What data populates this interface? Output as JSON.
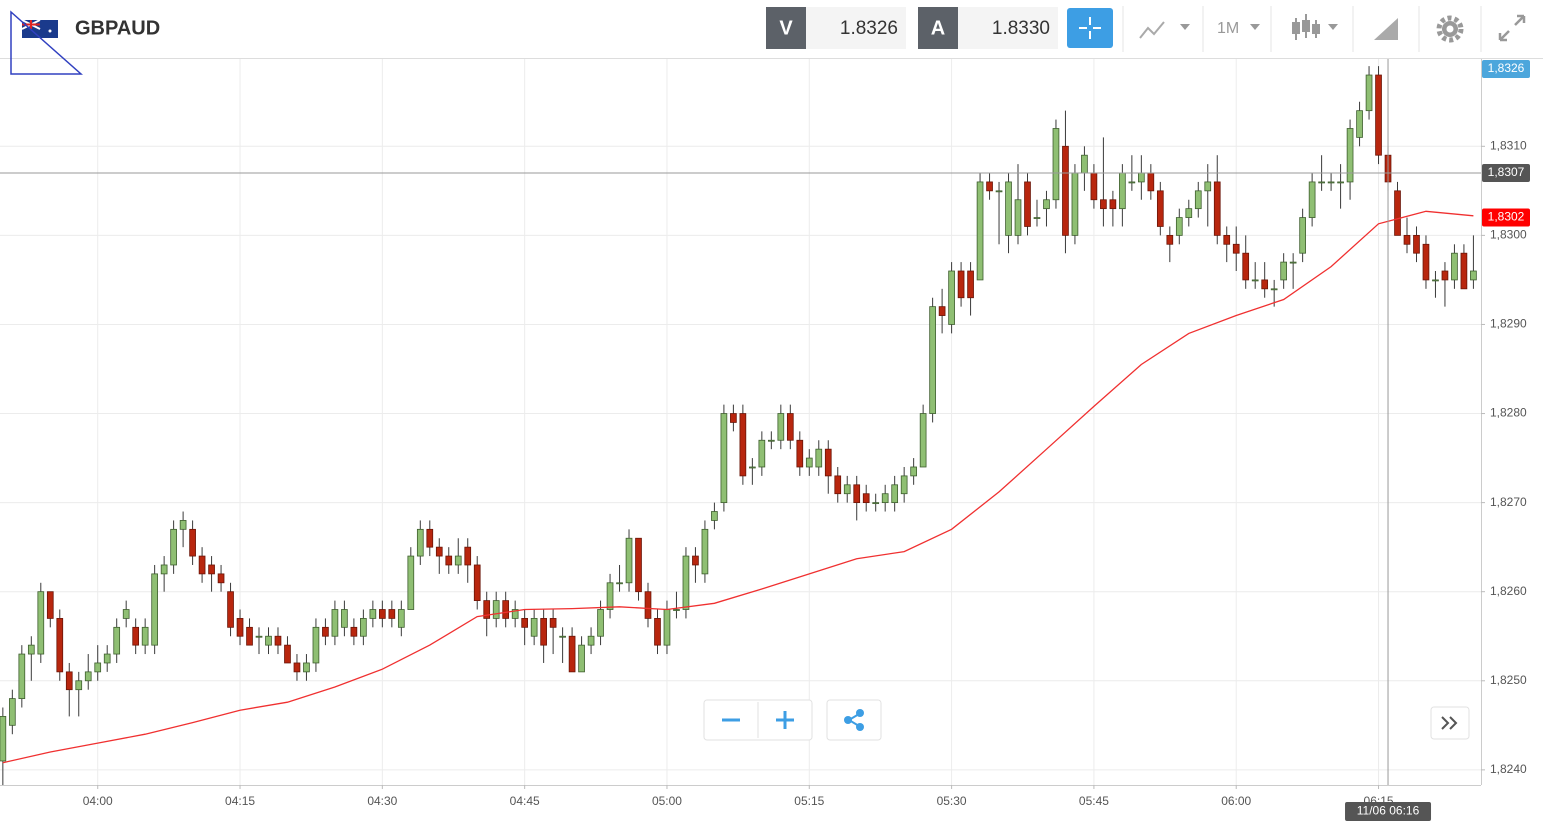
{
  "toolbar": {
    "symbol": "GBPAUD",
    "bid_label": "V",
    "bid": "1.8326",
    "ask_label": "A",
    "ask": "1.8330",
    "timeframe": "1M"
  },
  "chart_data": {
    "type": "candlestick",
    "title": "GBPAUD",
    "up_color": "#8fbf73",
    "down_color": "#b8260e",
    "candles": [
      [
        1.8241,
        1.8247,
        1.8238,
        1.8246
      ],
      [
        1.8245,
        1.8249,
        1.8244,
        1.8248
      ],
      [
        1.8248,
        1.8254,
        1.8247,
        1.8253
      ],
      [
        1.8253,
        1.8255,
        1.825,
        1.8254
      ],
      [
        1.8253,
        1.8261,
        1.8252,
        1.826
      ],
      [
        1.826,
        1.826,
        1.8256,
        1.8257
      ],
      [
        1.8257,
        1.8258,
        1.825,
        1.8251
      ],
      [
        1.8251,
        1.8252,
        1.8246,
        1.8249
      ],
      [
        1.8249,
        1.8251,
        1.8246,
        1.825
      ],
      [
        1.825,
        1.8253,
        1.8249,
        1.8251
      ],
      [
        1.8251,
        1.8254,
        1.825,
        1.8252
      ],
      [
        1.8252,
        1.8254,
        1.8251,
        1.8253
      ],
      [
        1.8253,
        1.8257,
        1.8252,
        1.8256
      ],
      [
        1.8257,
        1.8259,
        1.8256,
        1.8258
      ],
      [
        1.8256,
        1.8257,
        1.8253,
        1.8254
      ],
      [
        1.8254,
        1.8257,
        1.8253,
        1.8256
      ],
      [
        1.8254,
        1.8263,
        1.8253,
        1.8262
      ],
      [
        1.8262,
        1.8264,
        1.826,
        1.8263
      ],
      [
        1.8263,
        1.8268,
        1.8262,
        1.8267
      ],
      [
        1.8267,
        1.8269,
        1.8265,
        1.8268
      ],
      [
        1.8267,
        1.8268,
        1.8263,
        1.8264
      ],
      [
        1.8264,
        1.8265,
        1.8261,
        1.8262
      ],
      [
        1.8263,
        1.8264,
        1.826,
        1.8262
      ],
      [
        1.8262,
        1.8263,
        1.826,
        1.8261
      ],
      [
        1.826,
        1.8261,
        1.8255,
        1.8256
      ],
      [
        1.8257,
        1.8258,
        1.8254,
        1.8255
      ],
      [
        1.8256,
        1.8257,
        1.8254,
        1.8254
      ],
      [
        1.8255,
        1.8256,
        1.8253,
        1.8255
      ],
      [
        1.8254,
        1.8256,
        1.8253,
        1.8255
      ],
      [
        1.8255,
        1.8256,
        1.8253,
        1.8254
      ],
      [
        1.8254,
        1.8255,
        1.8252,
        1.8252
      ],
      [
        1.8252,
        1.8253,
        1.825,
        1.8251
      ],
      [
        1.8251,
        1.8253,
        1.825,
        1.8252
      ],
      [
        1.8252,
        1.8257,
        1.8251,
        1.8256
      ],
      [
        1.8256,
        1.8257,
        1.8254,
        1.8255
      ],
      [
        1.8255,
        1.8259,
        1.8254,
        1.8258
      ],
      [
        1.8256,
        1.8259,
        1.8255,
        1.8258
      ],
      [
        1.8256,
        1.8257,
        1.8254,
        1.8255
      ],
      [
        1.8255,
        1.8258,
        1.8254,
        1.8257
      ],
      [
        1.8257,
        1.8259,
        1.8256,
        1.8258
      ],
      [
        1.8258,
        1.8259,
        1.8256,
        1.8257
      ],
      [
        1.8258,
        1.8259,
        1.8256,
        1.8257
      ],
      [
        1.8256,
        1.8259,
        1.8255,
        1.8258
      ],
      [
        1.8258,
        1.8265,
        1.8258,
        1.8264
      ],
      [
        1.8264,
        1.8268,
        1.8263,
        1.8267
      ],
      [
        1.8267,
        1.8268,
        1.8264,
        1.8265
      ],
      [
        1.8265,
        1.8266,
        1.8262,
        1.8264
      ],
      [
        1.8264,
        1.8265,
        1.8262,
        1.8263
      ],
      [
        1.8263,
        1.8266,
        1.8262,
        1.8264
      ],
      [
        1.8265,
        1.8266,
        1.8261,
        1.8263
      ],
      [
        1.8263,
        1.8264,
        1.8258,
        1.8259
      ],
      [
        1.8259,
        1.826,
        1.8255,
        1.8257
      ],
      [
        1.8257,
        1.826,
        1.8256,
        1.8259
      ],
      [
        1.8259,
        1.826,
        1.8256,
        1.8257
      ],
      [
        1.8257,
        1.8259,
        1.8256,
        1.8258
      ],
      [
        1.8257,
        1.8258,
        1.8254,
        1.8256
      ],
      [
        1.8255,
        1.8258,
        1.8254,
        1.8257
      ],
      [
        1.8257,
        1.8258,
        1.8252,
        1.8254
      ],
      [
        1.8257,
        1.8258,
        1.8253,
        1.8256
      ],
      [
        1.8255,
        1.8256,
        1.8252,
        1.8255
      ],
      [
        1.8255,
        1.8256,
        1.8251,
        1.8251
      ],
      [
        1.8251,
        1.8255,
        1.8251,
        1.8254
      ],
      [
        1.8254,
        1.8256,
        1.8253,
        1.8255
      ],
      [
        1.8255,
        1.8259,
        1.8254,
        1.8258
      ],
      [
        1.8258,
        1.8262,
        1.8257,
        1.8261
      ],
      [
        1.8261,
        1.8263,
        1.826,
        1.8261
      ],
      [
        1.8261,
        1.8267,
        1.826,
        1.8266
      ],
      [
        1.8266,
        1.8266,
        1.8259,
        1.826
      ],
      [
        1.826,
        1.8261,
        1.8256,
        1.8257
      ],
      [
        1.8257,
        1.8258,
        1.8253,
        1.8254
      ],
      [
        1.8254,
        1.8259,
        1.8253,
        1.8258
      ],
      [
        1.8258,
        1.826,
        1.8257,
        1.8258
      ],
      [
        1.8258,
        1.8265,
        1.8257,
        1.8264
      ],
      [
        1.8264,
        1.8265,
        1.8261,
        1.8263
      ],
      [
        1.8262,
        1.8268,
        1.8261,
        1.8267
      ],
      [
        1.8268,
        1.827,
        1.8267,
        1.8269
      ],
      [
        1.827,
        1.8281,
        1.8269,
        1.828
      ],
      [
        1.828,
        1.8281,
        1.8278,
        1.8279
      ],
      [
        1.828,
        1.8281,
        1.8272,
        1.8273
      ],
      [
        1.8274,
        1.8275,
        1.8272,
        1.8274
      ],
      [
        1.8274,
        1.8278,
        1.8273,
        1.8277
      ],
      [
        1.8277,
        1.8278,
        1.8276,
        1.8277
      ],
      [
        1.8277,
        1.8281,
        1.8276,
        1.828
      ],
      [
        1.828,
        1.8281,
        1.8276,
        1.8277
      ],
      [
        1.8277,
        1.8278,
        1.8273,
        1.8274
      ],
      [
        1.8274,
        1.8276,
        1.8273,
        1.8275
      ],
      [
        1.8274,
        1.8277,
        1.8273,
        1.8276
      ],
      [
        1.8276,
        1.8277,
        1.8271,
        1.8273
      ],
      [
        1.8273,
        1.8274,
        1.827,
        1.8271
      ],
      [
        1.8271,
        1.8273,
        1.827,
        1.8272
      ],
      [
        1.8272,
        1.8273,
        1.8268,
        1.827
      ],
      [
        1.8271,
        1.8272,
        1.8269,
        1.827
      ],
      [
        1.827,
        1.8271,
        1.8269,
        1.827
      ],
      [
        1.827,
        1.8272,
        1.8269,
        1.8271
      ],
      [
        1.827,
        1.8273,
        1.8269,
        1.8272
      ],
      [
        1.8271,
        1.8274,
        1.827,
        1.8273
      ],
      [
        1.8273,
        1.8275,
        1.8272,
        1.8274
      ],
      [
        1.8274,
        1.8281,
        1.8274,
        1.828
      ],
      [
        1.828,
        1.8293,
        1.8279,
        1.8292
      ],
      [
        1.8292,
        1.8294,
        1.8289,
        1.8291
      ],
      [
        1.829,
        1.8297,
        1.8289,
        1.8296
      ],
      [
        1.8296,
        1.8297,
        1.8292,
        1.8293
      ],
      [
        1.8296,
        1.8297,
        1.8291,
        1.8293
      ],
      [
        1.8295,
        1.8307,
        1.8295,
        1.8306
      ],
      [
        1.8306,
        1.8307,
        1.8304,
        1.8305
      ],
      [
        1.8305,
        1.8306,
        1.8299,
        1.8305
      ],
      [
        1.83,
        1.8307,
        1.8298,
        1.8306
      ],
      [
        1.83,
        1.8308,
        1.8299,
        1.8304
      ],
      [
        1.8306,
        1.8307,
        1.83,
        1.8301
      ],
      [
        1.8302,
        1.8304,
        1.8301,
        1.8302
      ],
      [
        1.8303,
        1.8305,
        1.8301,
        1.8304
      ],
      [
        1.8304,
        1.8313,
        1.8303,
        1.8312
      ],
      [
        1.831,
        1.8314,
        1.8298,
        1.83
      ],
      [
        1.83,
        1.8308,
        1.8299,
        1.8307
      ],
      [
        1.8307,
        1.831,
        1.8305,
        1.8309
      ],
      [
        1.8307,
        1.8308,
        1.8303,
        1.8304
      ],
      [
        1.8304,
        1.8311,
        1.8301,
        1.8303
      ],
      [
        1.8304,
        1.8305,
        1.8301,
        1.8303
      ],
      [
        1.8303,
        1.8308,
        1.8301,
        1.8307
      ],
      [
        1.8306,
        1.8309,
        1.8305,
        1.8306
      ],
      [
        1.8306,
        1.8309,
        1.8304,
        1.8307
      ],
      [
        1.8307,
        1.8308,
        1.8304,
        1.8305
      ],
      [
        1.8305,
        1.8306,
        1.83,
        1.8301
      ],
      [
        1.83,
        1.8301,
        1.8297,
        1.8299
      ],
      [
        1.83,
        1.8303,
        1.8299,
        1.8302
      ],
      [
        1.8302,
        1.8304,
        1.8301,
        1.8303
      ],
      [
        1.8303,
        1.8306,
        1.8302,
        1.8305
      ],
      [
        1.8305,
        1.8308,
        1.8301,
        1.8306
      ],
      [
        1.8306,
        1.8309,
        1.8299,
        1.83
      ],
      [
        1.83,
        1.8301,
        1.8297,
        1.8299
      ],
      [
        1.8299,
        1.8301,
        1.8296,
        1.8298
      ],
      [
        1.8298,
        1.83,
        1.8294,
        1.8295
      ],
      [
        1.8295,
        1.8297,
        1.8294,
        1.8295
      ],
      [
        1.8295,
        1.8297,
        1.8293,
        1.8294
      ],
      [
        1.8294,
        1.8295,
        1.8292,
        1.8294
      ],
      [
        1.8295,
        1.8298,
        1.8294,
        1.8297
      ],
      [
        1.8297,
        1.8298,
        1.8294,
        1.8297
      ],
      [
        1.8298,
        1.8303,
        1.8297,
        1.8302
      ],
      [
        1.8302,
        1.8307,
        1.8301,
        1.8306
      ],
      [
        1.8306,
        1.8309,
        1.8305,
        1.8306
      ],
      [
        1.8306,
        1.8307,
        1.8305,
        1.8306
      ],
      [
        1.8306,
        1.8308,
        1.8303,
        1.8306
      ],
      [
        1.8306,
        1.8313,
        1.8304,
        1.8312
      ],
      [
        1.8311,
        1.8315,
        1.831,
        1.8314
      ],
      [
        1.8314,
        1.8319,
        1.8313,
        1.8318
      ],
      [
        1.8318,
        1.8319,
        1.8308,
        1.8309
      ],
      [
        1.8309,
        1.831,
        1.8305,
        1.8306
      ],
      [
        1.8305,
        1.8306,
        1.83,
        1.83
      ],
      [
        1.83,
        1.8302,
        1.8298,
        1.8299
      ],
      [
        1.83,
        1.8301,
        1.8297,
        1.8298
      ],
      [
        1.8299,
        1.83,
        1.8294,
        1.8295
      ],
      [
        1.8295,
        1.8296,
        1.8293,
        1.8295
      ],
      [
        1.8296,
        1.8297,
        1.8292,
        1.8295
      ],
      [
        1.8295,
        1.8299,
        1.8294,
        1.8298
      ],
      [
        1.8298,
        1.8299,
        1.8294,
        1.8294
      ],
      [
        1.8295,
        1.83,
        1.8294,
        1.8296
      ]
    ],
    "moving_average": {
      "color": "#f03030",
      "x": [
        0,
        5,
        10,
        15,
        20,
        25,
        30,
        35,
        40,
        45,
        50,
        55,
        60,
        65,
        70,
        75,
        80,
        85,
        90,
        95,
        100,
        105,
        110,
        115,
        120,
        125,
        130,
        135,
        140,
        145,
        150,
        155
      ],
      "values": [
        1.82408,
        1.8242,
        1.8243,
        1.8244,
        1.82453,
        1.82467,
        1.82476,
        1.82493,
        1.82513,
        1.8254,
        1.82572,
        1.8258,
        1.82581,
        1.82583,
        1.8258,
        1.82587,
        1.82603,
        1.8262,
        1.82637,
        1.82645,
        1.8267,
        1.82712,
        1.8276,
        1.82808,
        1.82855,
        1.8289,
        1.8291,
        1.82928,
        1.82965,
        1.83013,
        1.83027,
        1.83022
      ]
    },
    "xlim": [
      -0.3,
      155.8
    ],
    "xticks": [
      {
        "value": 10,
        "label": "04:00"
      },
      {
        "value": 25,
        "label": "04:15"
      },
      {
        "value": 40,
        "label": "04:30"
      },
      {
        "value": 55,
        "label": "04:45"
      },
      {
        "value": 70,
        "label": "05:00"
      },
      {
        "value": 85,
        "label": "05:15"
      },
      {
        "value": 100,
        "label": "05:30"
      },
      {
        "value": 115,
        "label": "05:45"
      },
      {
        "value": 130,
        "label": "06:00"
      },
      {
        "value": 145,
        "label": "06:15"
      }
    ],
    "ylim": [
      1.82383,
      1.83198
    ],
    "yticks": [
      {
        "value": 1.824,
        "label": "1,8240"
      },
      {
        "value": 1.825,
        "label": "1,8250"
      },
      {
        "value": 1.826,
        "label": "1,8260"
      },
      {
        "value": 1.827,
        "label": "1,8270"
      },
      {
        "value": 1.828,
        "label": "1,8280"
      },
      {
        "value": 1.829,
        "label": "1,8290"
      },
      {
        "value": 1.83,
        "label": "1,8300"
      },
      {
        "value": 1.831,
        "label": "1,8310"
      }
    ],
    "grid": true,
    "price_markers": [
      {
        "value": 1.8326,
        "label": "1,8326",
        "color": "#4ca6dc"
      },
      {
        "value": 1.8302,
        "label": "1,8302",
        "color": "#ff0000"
      }
    ],
    "crosshair": {
      "x": 146,
      "x_label": "11/06 06:16",
      "y": 1.8307,
      "y_label": "1,8307",
      "color": "#555555"
    }
  }
}
